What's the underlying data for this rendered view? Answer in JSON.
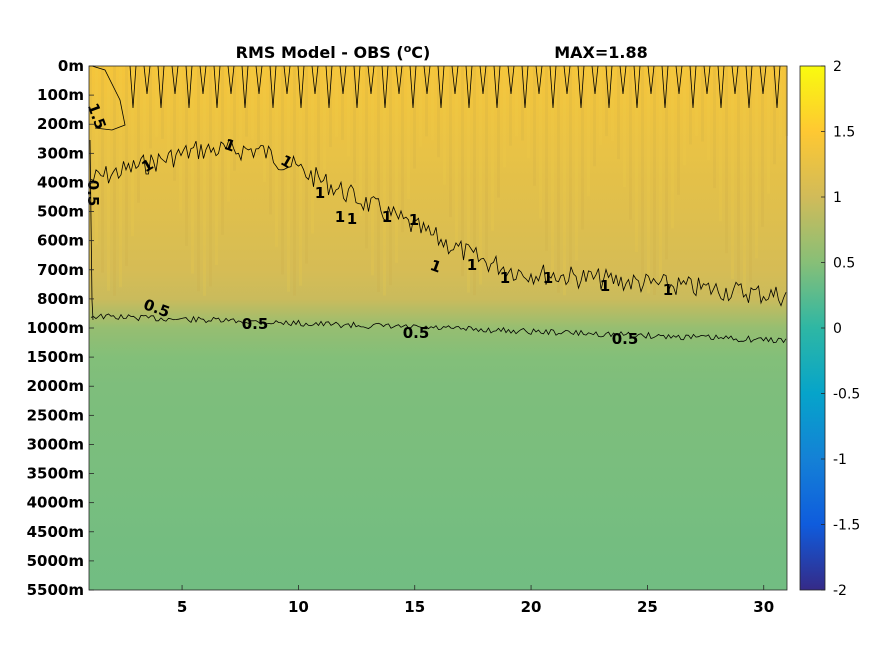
{
  "chart_data": {
    "type": "heatmap",
    "title": "RMS Model - OBS (°C)",
    "title_prefix": "RMS Model - OBS (",
    "title_sup": "o",
    "title_suffix": "C)",
    "max_label": "MAX=1.88",
    "x_ticks": [
      "5",
      "10",
      "15",
      "20",
      "25",
      "30"
    ],
    "x_tick_values": [
      5,
      10,
      15,
      20,
      25,
      30
    ],
    "xlim": [
      1,
      31
    ],
    "y_ticks": [
      "0m",
      "100m",
      "200m",
      "300m",
      "400m",
      "500m",
      "600m",
      "700m",
      "800m",
      "1000m",
      "1500m",
      "2000m",
      "2500m",
      "3000m",
      "3500m",
      "4000m",
      "4500m",
      "5000m",
      "5500m"
    ],
    "colorbar": {
      "ticks": [
        "2",
        "1.5",
        "1",
        "0.5",
        "0",
        "-0.5",
        "-1",
        "-1.5",
        "-2"
      ],
      "tick_values": [
        2,
        1.5,
        1,
        0.5,
        0,
        -0.5,
        -1,
        -1.5,
        -2
      ],
      "clim": [
        -2,
        2
      ],
      "colormap": "parula"
    },
    "contour_labels": [
      {
        "text": "1.5",
        "level": 1.5
      },
      {
        "text": "0.5",
        "level": 0.5
      },
      {
        "text": "1",
        "level": 1
      },
      {
        "text": "1",
        "level": 1
      },
      {
        "text": "1",
        "level": 1
      },
      {
        "text": "1",
        "level": 1
      },
      {
        "text": "1",
        "level": 1
      },
      {
        "text": "1",
        "level": 1
      },
      {
        "text": "1",
        "level": 1
      },
      {
        "text": "1",
        "level": 1
      },
      {
        "text": "1",
        "level": 1
      },
      {
        "text": "1",
        "level": 1
      },
      {
        "text": "1",
        "level": 1
      },
      {
        "text": "1",
        "level": 1
      },
      {
        "text": "1",
        "level": 1
      },
      {
        "text": "1",
        "level": 1
      },
      {
        "text": "0.5",
        "level": 0.5
      },
      {
        "text": "0.5",
        "level": 0.5
      },
      {
        "text": "0.5",
        "level": 0.5
      },
      {
        "text": "0.5",
        "level": 0.5
      }
    ],
    "profile": {
      "depth_levels_index": [
        0,
        1,
        2,
        3,
        4,
        5,
        6,
        7,
        8,
        9,
        10,
        11,
        12,
        13,
        14,
        15,
        16,
        17,
        18
      ],
      "rms_by_depth_index": [
        1.4,
        1.35,
        1.3,
        1.25,
        1.2,
        1.15,
        1.1,
        1.05,
        0.95,
        0.6,
        0.48,
        0.45,
        0.44,
        0.43,
        0.42,
        0.41,
        0.4,
        0.39,
        0.38
      ]
    }
  }
}
